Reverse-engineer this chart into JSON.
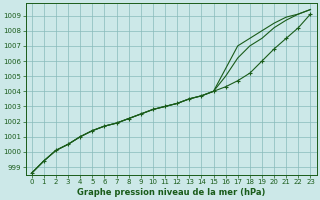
{
  "title": "Graphe pression niveau de la mer (hPa)",
  "bg_color": "#cce8e8",
  "grid_color": "#88bbbb",
  "line_color": "#1a5c1a",
  "xlim": [
    -0.5,
    23.5
  ],
  "ylim": [
    998.5,
    1009.8
  ],
  "yticks": [
    999,
    1000,
    1001,
    1002,
    1003,
    1004,
    1005,
    1006,
    1007,
    1008,
    1009
  ],
  "xticks": [
    0,
    1,
    2,
    3,
    4,
    5,
    6,
    7,
    8,
    9,
    10,
    11,
    12,
    13,
    14,
    15,
    16,
    17,
    18,
    19,
    20,
    21,
    22,
    23
  ],
  "series_smooth_top": [
    998.6,
    999.4,
    1000.1,
    1000.5,
    1001.0,
    1001.4,
    1001.7,
    1001.9,
    1002.2,
    1002.5,
    1002.8,
    1003.0,
    1003.2,
    1003.5,
    1003.7,
    1004.0,
    1005.5,
    1007.0,
    1007.5,
    1008.0,
    1008.5,
    1008.9,
    1009.1,
    1009.4
  ],
  "series_smooth_mid": [
    998.6,
    999.4,
    1000.1,
    1000.5,
    1001.0,
    1001.4,
    1001.7,
    1001.9,
    1002.2,
    1002.5,
    1002.8,
    1003.0,
    1003.2,
    1003.5,
    1003.7,
    1004.0,
    1005.0,
    1006.2,
    1007.0,
    1007.5,
    1008.2,
    1008.7,
    1009.1,
    1009.4
  ],
  "series_marked": [
    998.6,
    999.4,
    1000.1,
    1000.5,
    1001.0,
    1001.4,
    1001.7,
    1001.9,
    1002.2,
    1002.5,
    1002.8,
    1003.0,
    1003.2,
    1003.5,
    1003.7,
    1004.0,
    1004.3,
    1004.7,
    1005.2,
    1006.0,
    1006.8,
    1007.5,
    1008.2,
    1009.1
  ],
  "title_fontsize": 6,
  "tick_fontsize": 5
}
